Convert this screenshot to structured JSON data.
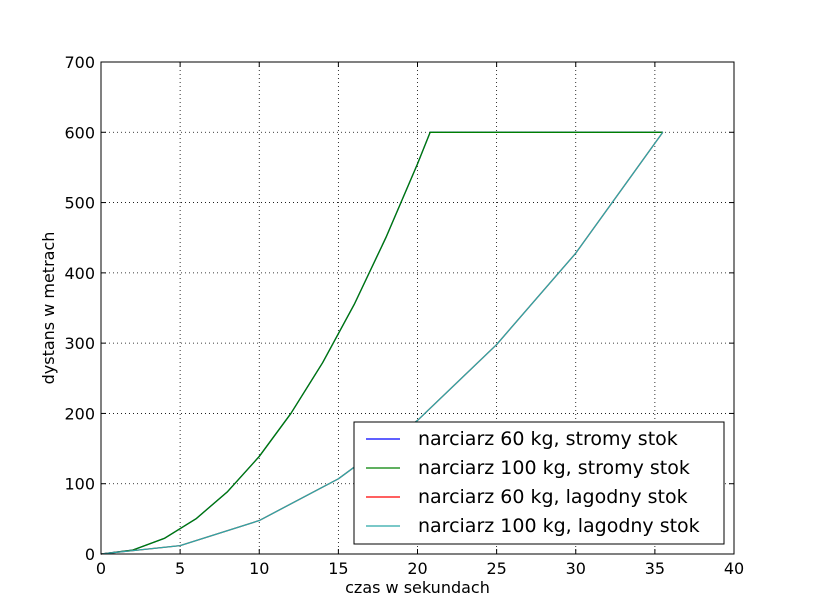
{
  "chart_data": {
    "type": "line",
    "title": "",
    "xlabel": "czas w sekundach",
    "ylabel": "dystans w metrach",
    "xlim": [
      0,
      40
    ],
    "ylim": [
      0,
      700
    ],
    "xticks": [
      0,
      5,
      10,
      15,
      20,
      25,
      30,
      35,
      40
    ],
    "yticks": [
      0,
      100,
      200,
      300,
      400,
      500,
      600,
      700
    ],
    "grid": true,
    "grid_style": "dotted",
    "legend_position": "lower-right",
    "series": [
      {
        "name": "narciarz 60 kg, stromy stok",
        "color": "#0000ff",
        "x": [
          0,
          2,
          4,
          6,
          8,
          10,
          12,
          14,
          16,
          18,
          20,
          20.8,
          35.5
        ],
        "y": [
          0,
          5.5,
          22.2,
          50,
          88.8,
          138.8,
          200,
          272,
          355,
          450,
          555,
          600,
          600
        ]
      },
      {
        "name": "narciarz 100 kg, stromy stok",
        "color": "#008000",
        "x": [
          0,
          2,
          4,
          6,
          8,
          10,
          12,
          14,
          16,
          18,
          20,
          20.8,
          35.5
        ],
        "y": [
          0,
          5.5,
          22.2,
          50,
          88.8,
          138.8,
          200,
          272,
          355,
          450,
          555,
          600,
          600
        ]
      },
      {
        "name": "narciarz 60 kg, lagodny stok",
        "color": "#ff0000",
        "x": [
          0,
          5,
          10,
          15,
          20,
          25,
          30,
          35.5
        ],
        "y": [
          0,
          11.9,
          47.6,
          107,
          190,
          298,
          428,
          600
        ]
      },
      {
        "name": "narciarz 100 kg, lagodny stok",
        "color": "#2aa8a8",
        "x": [
          0,
          5,
          10,
          15,
          20,
          25,
          30,
          35.5
        ],
        "y": [
          0,
          11.9,
          47.6,
          107,
          190,
          298,
          428,
          600
        ]
      }
    ]
  }
}
